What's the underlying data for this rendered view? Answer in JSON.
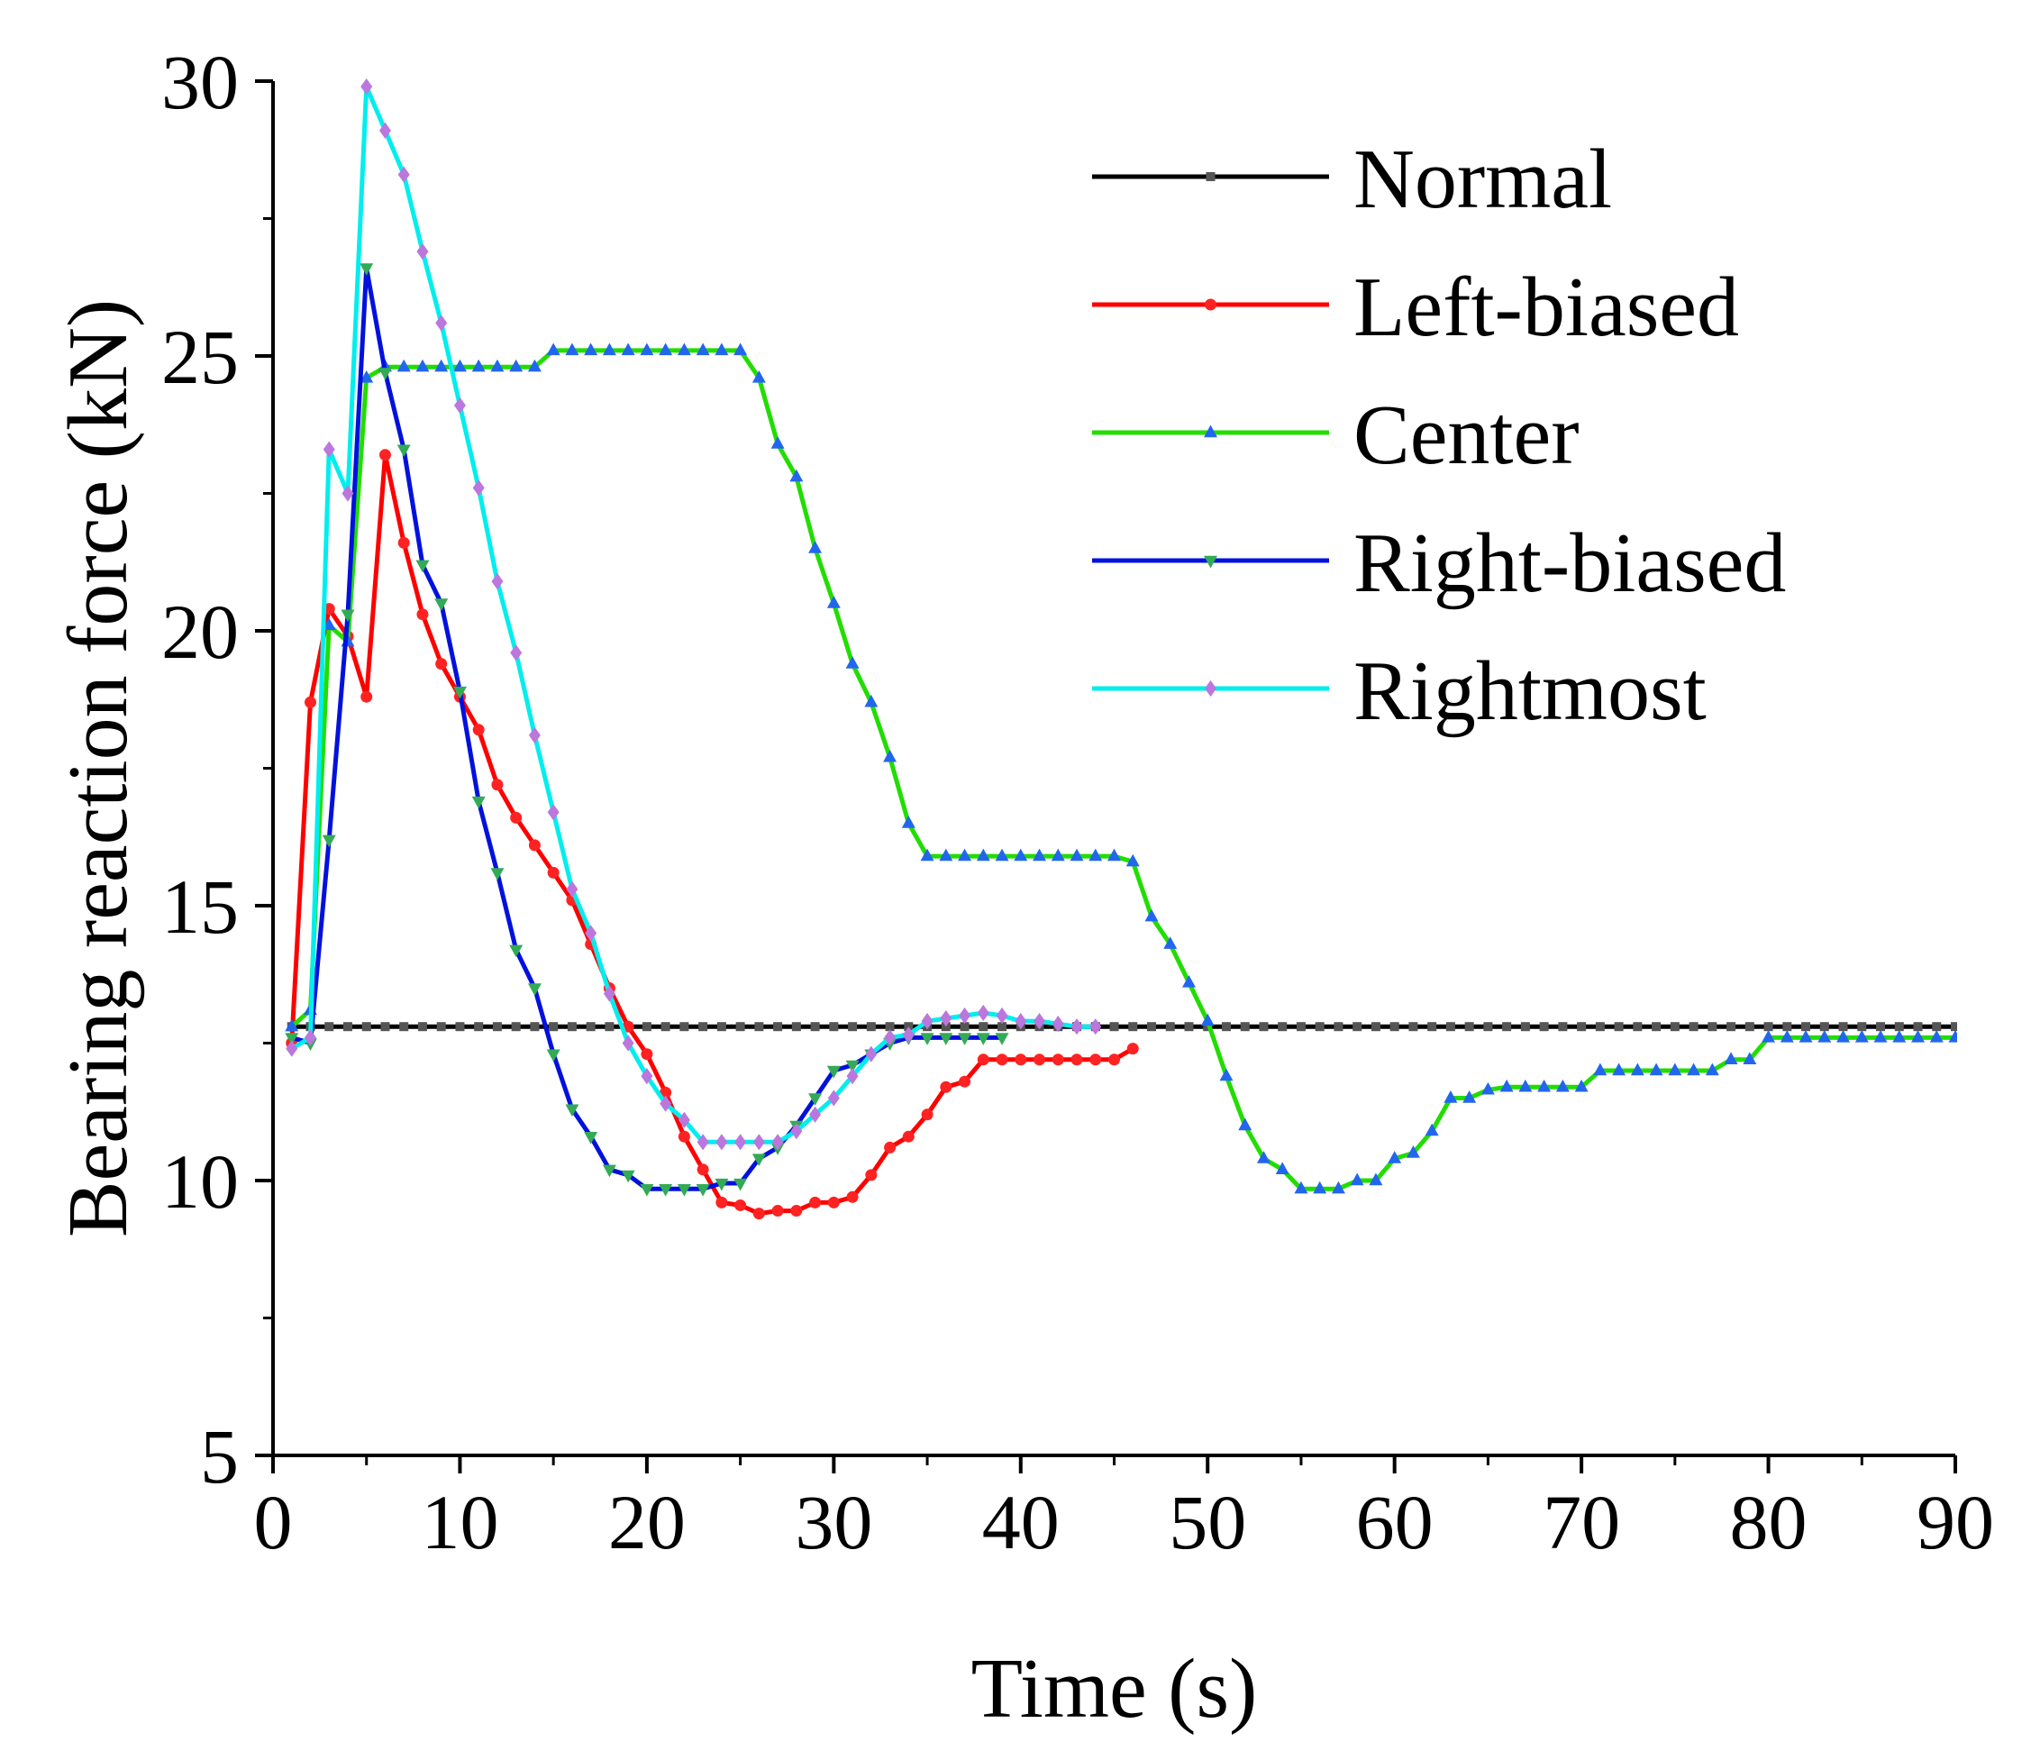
{
  "chart_data": {
    "type": "line",
    "title": "",
    "xlabel": "Time (s)",
    "ylabel": "Bearing reaction force (kN)",
    "xlim": [
      0,
      90
    ],
    "ylim": [
      5,
      30
    ],
    "xticks": [
      0,
      10,
      20,
      30,
      40,
      50,
      60,
      70,
      80,
      90
    ],
    "xtick_labels": [
      "0",
      "10",
      "20",
      "30",
      "40",
      "50",
      "60",
      "70",
      "80",
      "90"
    ],
    "yticks": [
      5,
      10,
      15,
      20,
      25,
      30
    ],
    "ytick_labels": [
      "5",
      "10",
      "15",
      "20",
      "25",
      "30"
    ],
    "legend_position": "top-right",
    "series": [
      {
        "name": "Normal",
        "color": "#000000",
        "marker_color": "#555555",
        "marker": "square",
        "points": [
          [
            1,
            12.8
          ],
          [
            90,
            12.8
          ]
        ],
        "marker_step": 1
      },
      {
        "name": "Left-biased",
        "color": "#ff0000",
        "marker_color": "#ff2222",
        "marker": "circle",
        "points": [
          [
            1,
            12.5
          ],
          [
            2,
            18.7
          ],
          [
            3,
            20.4
          ],
          [
            4,
            19.9
          ],
          [
            5,
            18.8
          ],
          [
            6,
            23.2
          ],
          [
            7,
            21.6
          ],
          [
            8,
            20.3
          ],
          [
            9,
            19.4
          ],
          [
            10,
            18.8
          ],
          [
            11,
            18.2
          ],
          [
            12,
            17.2
          ],
          [
            13,
            16.6
          ],
          [
            14,
            16.1
          ],
          [
            15,
            15.6
          ],
          [
            16,
            15.1
          ],
          [
            17,
            14.3
          ],
          [
            18,
            13.5
          ],
          [
            19,
            12.8
          ],
          [
            20,
            12.3
          ],
          [
            21,
            11.6
          ],
          [
            22,
            10.8
          ],
          [
            23,
            10.2
          ],
          [
            24,
            9.6
          ],
          [
            25,
            9.55
          ],
          [
            26,
            9.4
          ],
          [
            27,
            9.45
          ],
          [
            28,
            9.45
          ],
          [
            29,
            9.6
          ],
          [
            30,
            9.6
          ],
          [
            31,
            9.7
          ],
          [
            32,
            10.1
          ],
          [
            33,
            10.6
          ],
          [
            34,
            10.8
          ],
          [
            35,
            11.2
          ],
          [
            36,
            11.7
          ],
          [
            37,
            11.8
          ],
          [
            38,
            12.2
          ],
          [
            39,
            12.2
          ],
          [
            40,
            12.2
          ],
          [
            41,
            12.2
          ],
          [
            42,
            12.2
          ],
          [
            43,
            12.2
          ],
          [
            44,
            12.2
          ],
          [
            45,
            12.2
          ],
          [
            46,
            12.4
          ]
        ]
      },
      {
        "name": "Center",
        "color": "#22dd00",
        "marker_color": "#2266ee",
        "marker": "triangle-up",
        "points": [
          [
            1,
            12.8
          ],
          [
            2,
            13.1
          ],
          [
            3,
            20.1
          ],
          [
            4,
            19.8
          ],
          [
            5,
            24.6
          ],
          [
            6,
            24.8
          ],
          [
            7,
            24.8
          ],
          [
            8,
            24.8
          ],
          [
            9,
            24.8
          ],
          [
            10,
            24.8
          ],
          [
            11,
            24.8
          ],
          [
            12,
            24.8
          ],
          [
            13,
            24.8
          ],
          [
            14,
            24.8
          ],
          [
            15,
            25.1
          ],
          [
            16,
            25.1
          ],
          [
            17,
            25.1
          ],
          [
            18,
            25.1
          ],
          [
            19,
            25.1
          ],
          [
            20,
            25.1
          ],
          [
            21,
            25.1
          ],
          [
            22,
            25.1
          ],
          [
            23,
            25.1
          ],
          [
            24,
            25.1
          ],
          [
            25,
            25.1
          ],
          [
            26,
            24.6
          ],
          [
            27,
            23.4
          ],
          [
            28,
            22.8
          ],
          [
            29,
            21.5
          ],
          [
            30,
            20.5
          ],
          [
            31,
            19.4
          ],
          [
            32,
            18.7
          ],
          [
            33,
            17.7
          ],
          [
            34,
            16.5
          ],
          [
            35,
            15.9
          ],
          [
            36,
            15.9
          ],
          [
            37,
            15.9
          ],
          [
            38,
            15.9
          ],
          [
            39,
            15.9
          ],
          [
            40,
            15.9
          ],
          [
            41,
            15.9
          ],
          [
            42,
            15.9
          ],
          [
            43,
            15.9
          ],
          [
            44,
            15.9
          ],
          [
            45,
            15.9
          ],
          [
            46,
            15.8
          ],
          [
            47,
            14.8
          ],
          [
            48,
            14.3
          ],
          [
            49,
            13.6
          ],
          [
            50,
            12.9
          ],
          [
            51,
            11.9
          ],
          [
            52,
            11.0
          ],
          [
            53,
            10.4
          ],
          [
            54,
            10.2
          ],
          [
            55,
            9.85
          ],
          [
            56,
            9.85
          ],
          [
            57,
            9.85
          ],
          [
            58,
            10.0
          ],
          [
            59,
            10.0
          ],
          [
            60,
            10.4
          ],
          [
            61,
            10.5
          ],
          [
            62,
            10.9
          ],
          [
            63,
            11.5
          ],
          [
            64,
            11.5
          ],
          [
            65,
            11.65
          ],
          [
            66,
            11.7
          ],
          [
            67,
            11.7
          ],
          [
            68,
            11.7
          ],
          [
            69,
            11.7
          ],
          [
            70,
            11.7
          ],
          [
            71,
            12.0
          ],
          [
            72,
            12.0
          ],
          [
            73,
            12.0
          ],
          [
            74,
            12.0
          ],
          [
            75,
            12.0
          ],
          [
            76,
            12.0
          ],
          [
            77,
            12.0
          ],
          [
            78,
            12.2
          ],
          [
            79,
            12.2
          ],
          [
            80,
            12.6
          ],
          [
            81,
            12.6
          ],
          [
            82,
            12.6
          ],
          [
            83,
            12.6
          ],
          [
            84,
            12.6
          ],
          [
            85,
            12.6
          ],
          [
            86,
            12.6
          ],
          [
            87,
            12.6
          ],
          [
            88,
            12.6
          ],
          [
            89,
            12.6
          ],
          [
            90,
            12.6
          ]
        ]
      },
      {
        "name": "Right-biased",
        "color": "#0011dd",
        "marker_color": "#33aa55",
        "marker": "triangle-down",
        "points": [
          [
            1,
            12.6
          ],
          [
            2,
            12.5
          ],
          [
            3,
            16.2
          ],
          [
            4,
            20.3
          ],
          [
            5,
            26.6
          ],
          [
            6,
            24.7
          ],
          [
            7,
            23.3
          ],
          [
            8,
            21.2
          ],
          [
            9,
            20.5
          ],
          [
            10,
            18.9
          ],
          [
            11,
            16.9
          ],
          [
            12,
            15.6
          ],
          [
            13,
            14.2
          ],
          [
            14,
            13.5
          ],
          [
            15,
            12.3
          ],
          [
            16,
            11.3
          ],
          [
            17,
            10.8
          ],
          [
            18,
            10.2
          ],
          [
            19,
            10.1
          ],
          [
            20,
            9.85
          ],
          [
            21,
            9.85
          ],
          [
            22,
            9.85
          ],
          [
            23,
            9.85
          ],
          [
            24,
            9.95
          ],
          [
            25,
            9.95
          ],
          [
            26,
            10.4
          ],
          [
            27,
            10.6
          ],
          [
            28,
            11.0
          ],
          [
            29,
            11.5
          ],
          [
            30,
            12.0
          ],
          [
            31,
            12.1
          ],
          [
            32,
            12.3
          ],
          [
            33,
            12.5
          ],
          [
            34,
            12.6
          ],
          [
            35,
            12.6
          ],
          [
            36,
            12.6
          ],
          [
            37,
            12.6
          ],
          [
            38,
            12.6
          ],
          [
            39,
            12.6
          ]
        ]
      },
      {
        "name": "Rightmost",
        "color": "#00eeee",
        "marker_color": "#bb77dd",
        "marker": "diamond",
        "points": [
          [
            1,
            12.4
          ],
          [
            2,
            12.6
          ],
          [
            3,
            23.3
          ],
          [
            4,
            22.5
          ],
          [
            5,
            29.9
          ],
          [
            6,
            29.1
          ],
          [
            7,
            28.3
          ],
          [
            8,
            26.9
          ],
          [
            9,
            25.6
          ],
          [
            10,
            24.1
          ],
          [
            11,
            22.6
          ],
          [
            12,
            20.9
          ],
          [
            13,
            19.6
          ],
          [
            14,
            18.1
          ],
          [
            15,
            16.7
          ],
          [
            16,
            15.3
          ],
          [
            17,
            14.5
          ],
          [
            18,
            13.4
          ],
          [
            19,
            12.5
          ],
          [
            20,
            11.9
          ],
          [
            21,
            11.4
          ],
          [
            22,
            11.1
          ],
          [
            23,
            10.7
          ],
          [
            24,
            10.7
          ],
          [
            25,
            10.7
          ],
          [
            26,
            10.7
          ],
          [
            27,
            10.7
          ],
          [
            28,
            10.9
          ],
          [
            29,
            11.2
          ],
          [
            30,
            11.5
          ],
          [
            31,
            11.9
          ],
          [
            32,
            12.3
          ],
          [
            33,
            12.6
          ],
          [
            34,
            12.65
          ],
          [
            35,
            12.9
          ],
          [
            36,
            12.95
          ],
          [
            37,
            13.0
          ],
          [
            38,
            13.05
          ],
          [
            39,
            13.0
          ],
          [
            40,
            12.9
          ],
          [
            41,
            12.9
          ],
          [
            42,
            12.85
          ],
          [
            43,
            12.8
          ],
          [
            44,
            12.8
          ]
        ]
      }
    ]
  }
}
